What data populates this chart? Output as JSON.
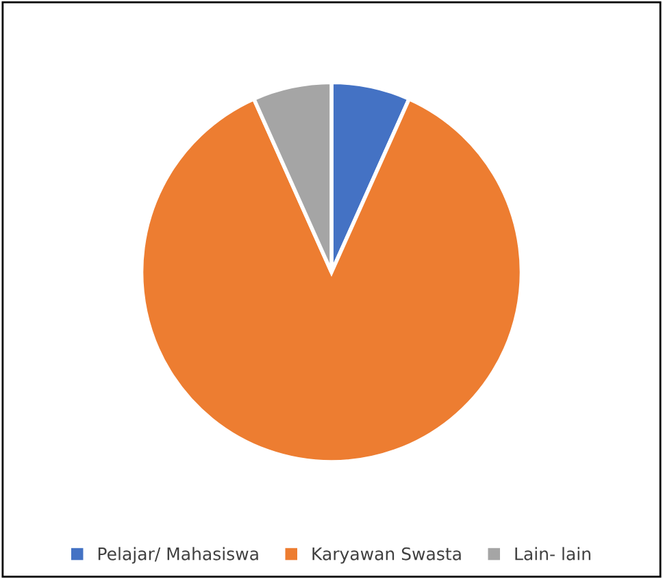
{
  "chart_data": {
    "type": "pie",
    "categories": [
      "Pelajar/ Mahasiswa",
      "Karyawan Swasta",
      "Lain- lain"
    ],
    "values": [
      6.7,
      86.6,
      6.7
    ],
    "colors": [
      "#4472c4",
      "#ed7d31",
      "#a5a5a5"
    ],
    "legend": "bottom"
  }
}
